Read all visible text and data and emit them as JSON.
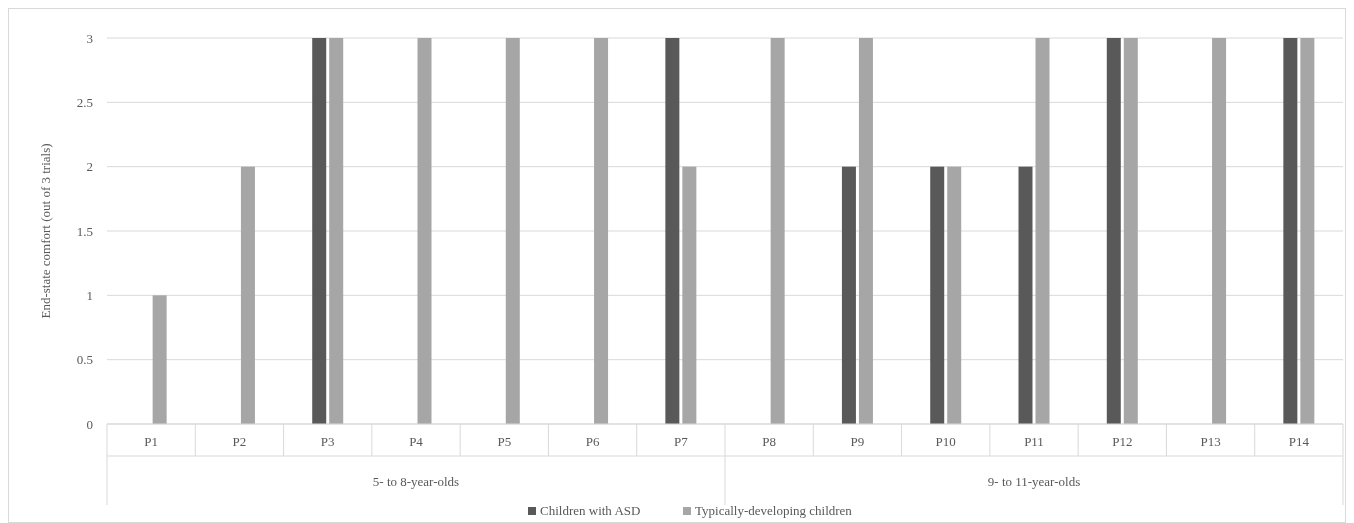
{
  "chart_data": {
    "type": "bar",
    "ylabel": "End-state comfort  (out of 3 trials)",
    "categories": [
      "P1",
      "P2",
      "P3",
      "P4",
      "P5",
      "P6",
      "P7",
      "P8",
      "P9",
      "P10",
      "P11",
      "P12",
      "P13",
      "P14"
    ],
    "series": [
      {
        "name": "Children with ASD",
        "color": "#595959",
        "values": [
          0,
          0,
          3,
          0,
          0,
          0,
          3,
          0,
          2,
          2,
          2,
          3,
          0,
          3
        ]
      },
      {
        "name": "Typically-developing children",
        "color": "#a6a6a6",
        "values": [
          1,
          2,
          3,
          3,
          3,
          3,
          2,
          3,
          3,
          2,
          3,
          3,
          3,
          3
        ]
      }
    ],
    "ylim": [
      0,
      3
    ],
    "yticks": [
      0,
      0.5,
      1,
      1.5,
      2,
      2.5,
      3
    ],
    "grid": "y",
    "legend": "bottom",
    "annotations": [
      "5- to 8-year-olds",
      "9- to 11-year-olds"
    ]
  }
}
